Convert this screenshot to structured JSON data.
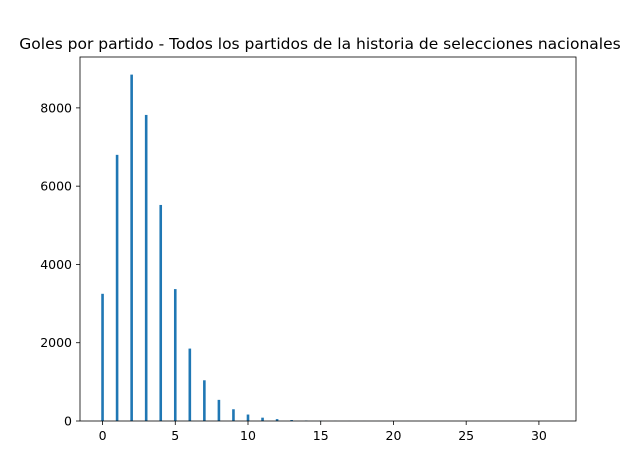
{
  "chart_data": {
    "type": "bar",
    "title": "Goles por partido - Todos los partidos de la historia de selecciones nacionales",
    "xlabel": "",
    "ylabel": "",
    "xlim": [
      -1.55,
      32.55
    ],
    "ylim": [
      0,
      9300
    ],
    "x_ticks": [
      0,
      5,
      10,
      15,
      20,
      25,
      30
    ],
    "y_ticks": [
      0,
      2000,
      4000,
      6000,
      8000
    ],
    "bar_color": "#1f77b4",
    "grid": false,
    "x": [
      0,
      1,
      2,
      3,
      4,
      5,
      6,
      7,
      8,
      9,
      10,
      11,
      12,
      13,
      14,
      15,
      16,
      17,
      18,
      19,
      20,
      21,
      22,
      23,
      24,
      25,
      26,
      27,
      28,
      29,
      30,
      31
    ],
    "values": [
      3250,
      6800,
      8850,
      7820,
      5520,
      3370,
      1850,
      1040,
      540,
      300,
      165,
      85,
      48,
      25,
      12,
      6,
      3,
      2,
      1,
      1,
      1,
      1,
      0,
      0,
      0,
      0,
      0,
      0,
      0,
      0,
      0,
      1
    ]
  }
}
